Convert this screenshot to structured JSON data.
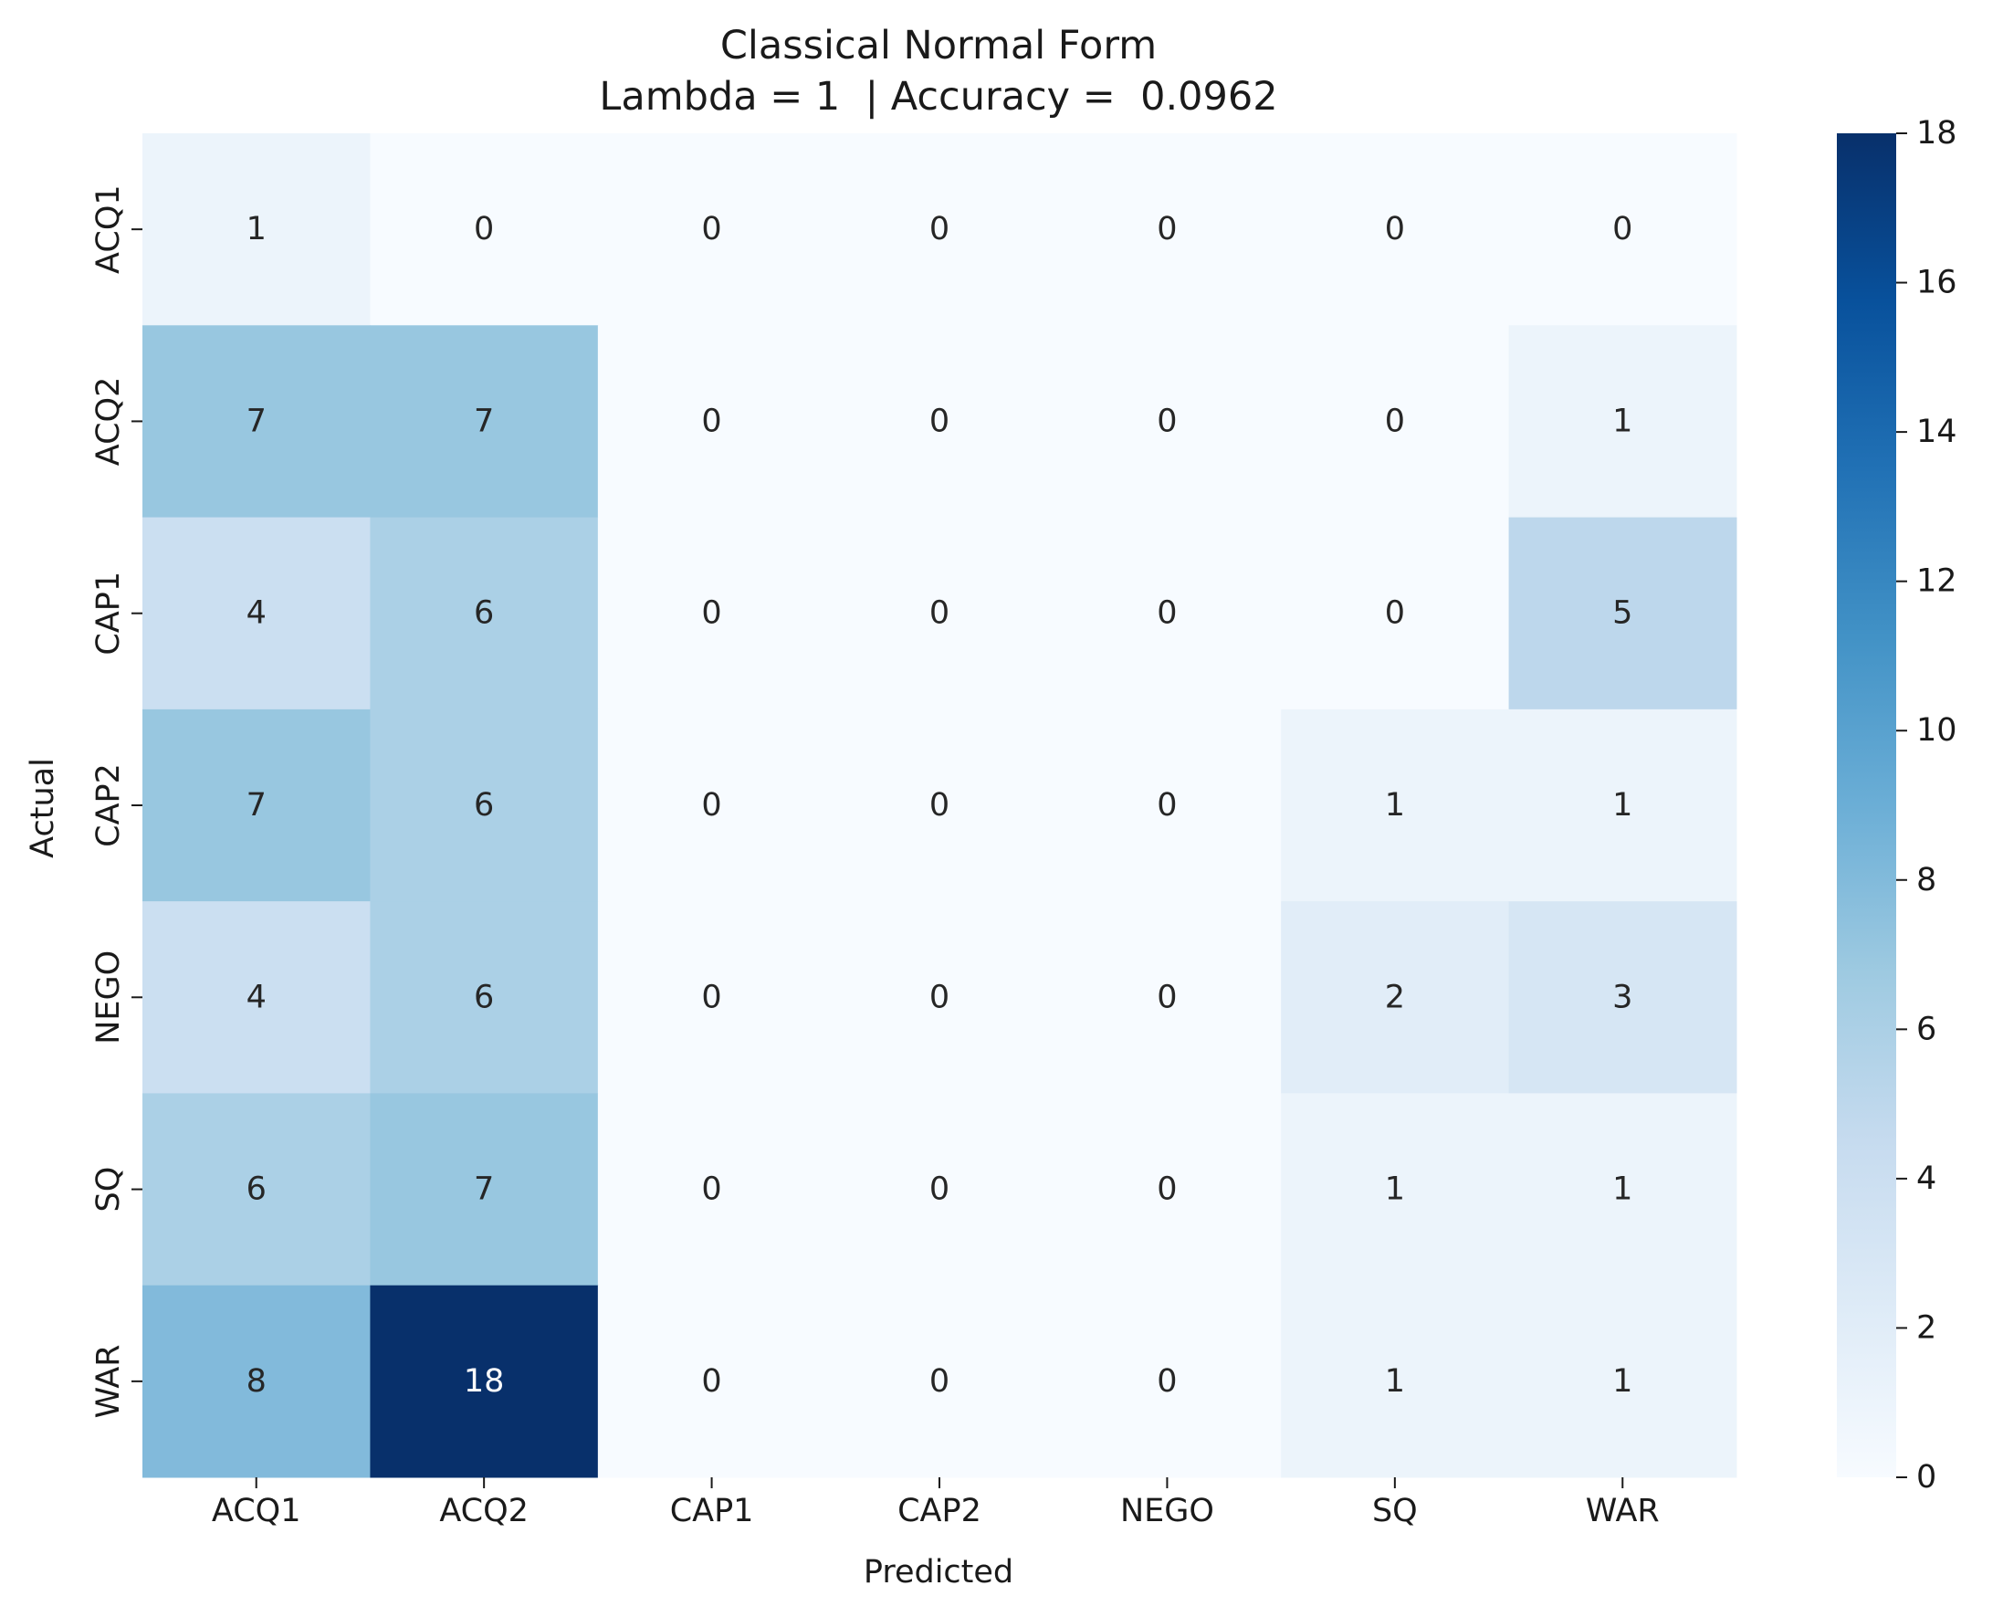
{
  "chart_data": {
    "type": "heatmap",
    "title": "Classical Normal Form",
    "subtitle": "Lambda = 1  | Accuracy =  0.0962",
    "xlabel": "Predicted",
    "ylabel": "Actual",
    "x_categories": [
      "ACQ1",
      "ACQ2",
      "CAP1",
      "CAP2",
      "NEGO",
      "SQ",
      "WAR"
    ],
    "y_categories": [
      "ACQ1",
      "ACQ2",
      "CAP1",
      "CAP2",
      "NEGO",
      "SQ",
      "WAR"
    ],
    "values": [
      [
        1,
        0,
        0,
        0,
        0,
        0,
        0
      ],
      [
        7,
        7,
        0,
        0,
        0,
        0,
        1
      ],
      [
        4,
        6,
        0,
        0,
        0,
        0,
        5
      ],
      [
        7,
        6,
        0,
        0,
        0,
        1,
        1
      ],
      [
        4,
        6,
        0,
        0,
        0,
        2,
        3
      ],
      [
        6,
        7,
        0,
        0,
        0,
        1,
        1
      ],
      [
        8,
        18,
        0,
        0,
        0,
        1,
        1
      ]
    ],
    "colorbar": {
      "min": 0,
      "max": 18,
      "ticks": [
        0,
        2,
        4,
        6,
        8,
        10,
        12,
        14,
        16,
        18
      ]
    },
    "colormap": "Blues",
    "grid": false
  }
}
